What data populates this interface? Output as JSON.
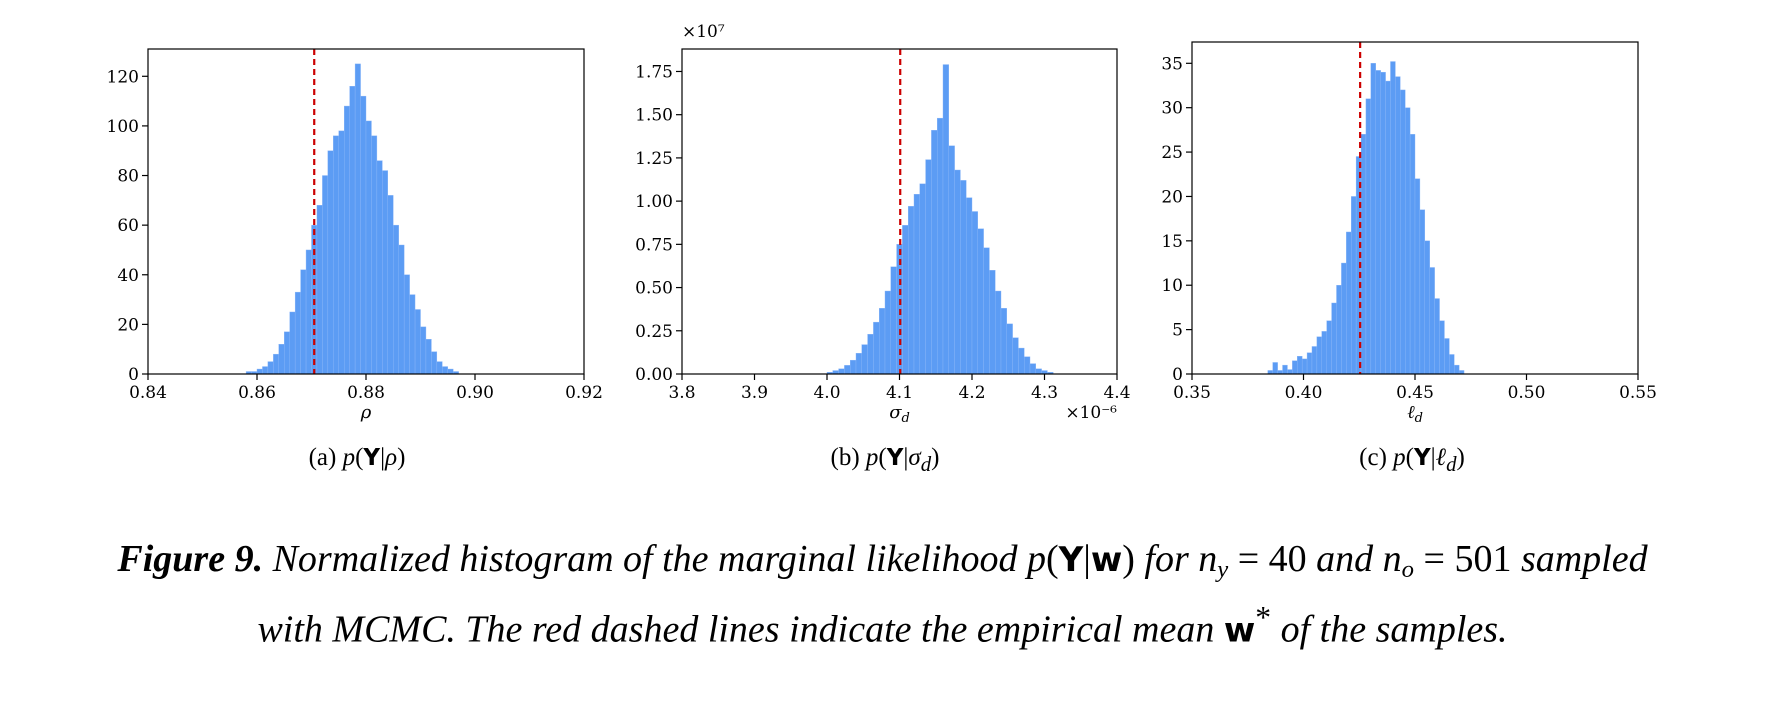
{
  "chart_data": [
    {
      "type": "bar",
      "panel": "a",
      "xlabel": "ρ",
      "ylabel": "",
      "xlim": [
        0.84,
        0.92
      ],
      "ylim": [
        0,
        131
      ],
      "xticks": [
        0.84,
        0.86,
        0.88,
        0.9,
        0.92
      ],
      "xtick_labels": [
        "0.84",
        "0.86",
        "0.88",
        "0.90",
        "0.92"
      ],
      "yticks": [
        0,
        20,
        40,
        60,
        80,
        100,
        120
      ],
      "ytick_labels": [
        "0",
        "20",
        "40",
        "60",
        "80",
        "100",
        "120"
      ],
      "x_offset_label": "",
      "y_offset_label": "",
      "mean_line": 0.8705,
      "bins": [
        [
          0.858,
          1
        ],
        [
          0.859,
          1
        ],
        [
          0.86,
          2
        ],
        [
          0.861,
          3
        ],
        [
          0.862,
          5
        ],
        [
          0.863,
          8
        ],
        [
          0.864,
          12
        ],
        [
          0.865,
          17
        ],
        [
          0.866,
          25
        ],
        [
          0.867,
          33
        ],
        [
          0.868,
          42
        ],
        [
          0.869,
          50
        ],
        [
          0.87,
          60
        ],
        [
          0.871,
          68
        ],
        [
          0.872,
          80
        ],
        [
          0.873,
          90
        ],
        [
          0.874,
          96
        ],
        [
          0.875,
          98
        ],
        [
          0.876,
          108
        ],
        [
          0.877,
          116
        ],
        [
          0.878,
          125
        ],
        [
          0.879,
          112
        ],
        [
          0.88,
          102
        ],
        [
          0.881,
          96
        ],
        [
          0.882,
          86
        ],
        [
          0.883,
          82
        ],
        [
          0.884,
          72
        ],
        [
          0.885,
          60
        ],
        [
          0.886,
          52
        ],
        [
          0.887,
          40
        ],
        [
          0.888,
          32
        ],
        [
          0.889,
          26
        ],
        [
          0.89,
          19
        ],
        [
          0.891,
          14
        ],
        [
          0.892,
          9
        ],
        [
          0.893,
          5
        ],
        [
          0.894,
          3
        ],
        [
          0.895,
          2
        ],
        [
          0.896,
          1
        ]
      ]
    },
    {
      "type": "bar",
      "panel": "b",
      "xlabel": "σd",
      "ylabel": "",
      "xlim": [
        3.8,
        4.4
      ],
      "ylim": [
        0,
        1.88
      ],
      "xticks": [
        3.8,
        3.9,
        4.0,
        4.1,
        4.2,
        4.3,
        4.4
      ],
      "xtick_labels": [
        "3.8",
        "3.9",
        "4.0",
        "4.1",
        "4.2",
        "4.3",
        "4.4"
      ],
      "yticks": [
        0,
        0.25,
        0.5,
        0.75,
        1.0,
        1.25,
        1.5,
        1.75
      ],
      "ytick_labels": [
        "0.00",
        "0.25",
        "0.50",
        "0.75",
        "1.00",
        "1.25",
        "1.50",
        "1.75"
      ],
      "x_offset_label": "×10⁻⁶",
      "y_offset_label": "×10⁷",
      "mean_line": 4.101,
      "bins": [
        [
          4.0,
          0.01
        ],
        [
          4.008,
          0.02
        ],
        [
          4.016,
          0.03
        ],
        [
          4.024,
          0.05
        ],
        [
          4.032,
          0.08
        ],
        [
          4.04,
          0.12
        ],
        [
          4.048,
          0.17
        ],
        [
          4.056,
          0.23
        ],
        [
          4.064,
          0.3
        ],
        [
          4.072,
          0.38
        ],
        [
          4.08,
          0.48
        ],
        [
          4.088,
          0.62
        ],
        [
          4.096,
          0.75
        ],
        [
          4.104,
          0.86
        ],
        [
          4.112,
          0.97
        ],
        [
          4.12,
          1.04
        ],
        [
          4.128,
          1.1
        ],
        [
          4.136,
          1.24
        ],
        [
          4.144,
          1.41
        ],
        [
          4.152,
          1.48
        ],
        [
          4.16,
          1.79
        ],
        [
          4.168,
          1.32
        ],
        [
          4.176,
          1.18
        ],
        [
          4.184,
          1.12
        ],
        [
          4.192,
          1.02
        ],
        [
          4.2,
          0.94
        ],
        [
          4.208,
          0.84
        ],
        [
          4.216,
          0.73
        ],
        [
          4.224,
          0.6
        ],
        [
          4.232,
          0.48
        ],
        [
          4.24,
          0.38
        ],
        [
          4.248,
          0.29
        ],
        [
          4.256,
          0.21
        ],
        [
          4.264,
          0.15
        ],
        [
          4.272,
          0.1
        ],
        [
          4.28,
          0.06
        ],
        [
          4.288,
          0.03
        ],
        [
          4.296,
          0.02
        ],
        [
          4.304,
          0.01
        ]
      ]
    },
    {
      "type": "bar",
      "panel": "c",
      "xlabel": "ℓd",
      "ylabel": "",
      "xlim": [
        0.35,
        0.55
      ],
      "ylim": [
        0,
        37.4
      ],
      "xticks": [
        0.35,
        0.4,
        0.45,
        0.5,
        0.55
      ],
      "xtick_labels": [
        "0.35",
        "0.40",
        "0.45",
        "0.50",
        "0.55"
      ],
      "yticks": [
        0,
        5,
        10,
        15,
        20,
        25,
        30,
        35
      ],
      "ytick_labels": [
        "0",
        "5",
        "10",
        "15",
        "20",
        "25",
        "30",
        "35"
      ],
      "x_offset_label": "",
      "y_offset_label": "",
      "mean_line": 0.4254,
      "bins": [
        [
          0.384,
          0.4
        ],
        [
          0.3862,
          1.3
        ],
        [
          0.3884,
          0.4
        ],
        [
          0.3906,
          1.0
        ],
        [
          0.3928,
          0.5
        ],
        [
          0.395,
          1.5
        ],
        [
          0.3972,
          2.0
        ],
        [
          0.3994,
          1.7
        ],
        [
          0.4016,
          2.4
        ],
        [
          0.4038,
          3.1
        ],
        [
          0.406,
          4.2
        ],
        [
          0.4082,
          4.8
        ],
        [
          0.4104,
          6.0
        ],
        [
          0.4126,
          8.0
        ],
        [
          0.4148,
          10.0
        ],
        [
          0.417,
          12.5
        ],
        [
          0.4192,
          16.0
        ],
        [
          0.4214,
          20.0
        ],
        [
          0.4236,
          24.5
        ],
        [
          0.4258,
          27.0
        ],
        [
          0.428,
          31.0
        ],
        [
          0.4302,
          35.0
        ],
        [
          0.4324,
          34.2
        ],
        [
          0.4346,
          34.0
        ],
        [
          0.4368,
          33.0
        ],
        [
          0.439,
          35.2
        ],
        [
          0.4412,
          33.5
        ],
        [
          0.4434,
          32.0
        ],
        [
          0.4456,
          30.0
        ],
        [
          0.4478,
          27.0
        ],
        [
          0.45,
          22.0
        ],
        [
          0.4522,
          18.5
        ],
        [
          0.4544,
          15.0
        ],
        [
          0.4566,
          12.0
        ],
        [
          0.4588,
          8.5
        ],
        [
          0.461,
          6.0
        ],
        [
          0.4632,
          4.0
        ],
        [
          0.4654,
          2.2
        ],
        [
          0.4676,
          1.0
        ],
        [
          0.4698,
          0.4
        ]
      ]
    }
  ],
  "subcaptions": {
    "a": {
      "prefix": "(a) ",
      "func": "p",
      "bold": "Y",
      "cond": "ρ"
    },
    "b": {
      "prefix": "(b) ",
      "func": "p",
      "bold": "Y",
      "cond": "σ",
      "cond_sub": "d"
    },
    "c": {
      "prefix": "(c) ",
      "func": "p",
      "bold": "Y",
      "cond": "ℓ",
      "cond_sub": "d"
    }
  },
  "caption": {
    "label": "Figure 9.",
    "text1": " Normalized histogram of the marginal likelihood ",
    "expr_func": "p",
    "expr_bold": "Y",
    "expr_bold2": "w",
    "text2": " for ",
    "ny_var": "n",
    "ny_sub": "y",
    "ny_eq": " = 40",
    "text3": " and ",
    "no_var": "n",
    "no_sub": "o",
    "no_eq": " = 501",
    "text4": " sampled",
    "text5": "with MCMC. The red dashed lines indicate the empirical mean ",
    "wstar": "w",
    "star": "*",
    "text6": " of the samples."
  },
  "colors": {
    "bars": "#5c9cf4",
    "bar_edge": "#8ab6f8",
    "mean_line": "#cc0000",
    "axes": "#000000"
  }
}
